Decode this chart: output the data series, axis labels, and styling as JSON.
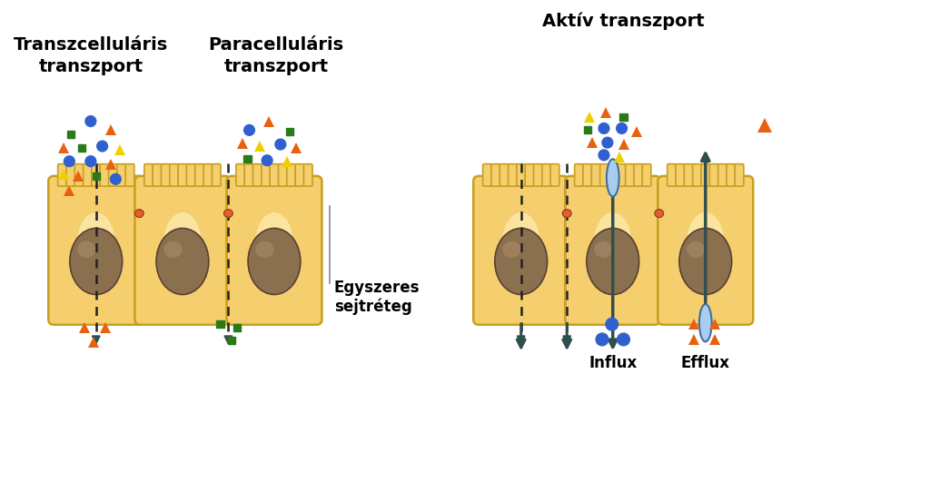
{
  "bg_color": "#ffffff",
  "title1": "Transzcelluláris\ntranszport",
  "title2": "Paracelluláris\ntranszport",
  "title3": "Aktív transzport",
  "label_egyszeres": "Egyszeres\nsejtréteg",
  "label_influx": "Influx",
  "label_efflux": "Efflux",
  "cell_fill": "#F5CE6E",
  "cell_fill_light": "#FFF0B8",
  "cell_edge": "#C8A020",
  "nucleus_fill": "#8B7050",
  "nucleus_edge": "#5A4030",
  "junction_color": "#E06030",
  "arrow_color": "#2F4F4F",
  "dashed_color": "#222222",
  "transporter_fill": "#AACCEE",
  "transporter_edge": "#4070A0",
  "particle_orange": "#E86010",
  "particle_blue": "#3060D0",
  "particle_green": "#2A7A1A",
  "particle_yellow": "#EED000",
  "text_color": "#000000",
  "title_fontsize": 14,
  "label_fontsize": 12
}
